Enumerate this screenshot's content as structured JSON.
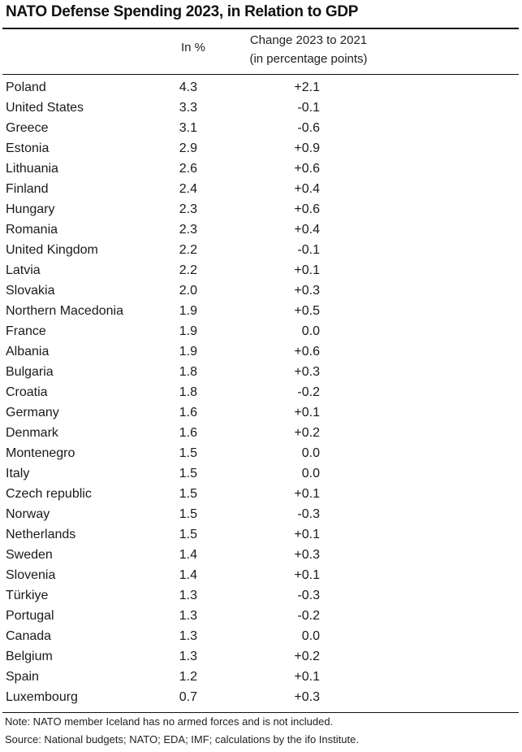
{
  "title": "NATO Defense Spending 2023, in Relation to GDP",
  "table": {
    "headers": {
      "country": "",
      "pct": "In %",
      "change_line1": "Change 2023 to 2021",
      "change_line2": "(in percentage points)"
    },
    "rows": [
      {
        "country": "Poland",
        "pct": "4.3",
        "change": "+2.1"
      },
      {
        "country": "United States",
        "pct": "3.3",
        "change": "-0.1"
      },
      {
        "country": "Greece",
        "pct": "3.1",
        "change": "-0.6"
      },
      {
        "country": "Estonia",
        "pct": "2.9",
        "change": "+0.9"
      },
      {
        "country": "Lithuania",
        "pct": "2.6",
        "change": "+0.6"
      },
      {
        "country": "Finland",
        "pct": "2.4",
        "change": "+0.4"
      },
      {
        "country": "Hungary",
        "pct": "2.3",
        "change": "+0.6"
      },
      {
        "country": "Romania",
        "pct": "2.3",
        "change": "+0.4"
      },
      {
        "country": "United Kingdom",
        "pct": "2.2",
        "change": "-0.1"
      },
      {
        "country": "Latvia",
        "pct": "2.2",
        "change": "+0.1"
      },
      {
        "country": "Slovakia",
        "pct": "2.0",
        "change": "+0.3"
      },
      {
        "country": "Northern Macedonia",
        "pct": "1.9",
        "change": "+0.5"
      },
      {
        "country": "France",
        "pct": "1.9",
        "change": "0.0"
      },
      {
        "country": "Albania",
        "pct": "1.9",
        "change": "+0.6"
      },
      {
        "country": "Bulgaria",
        "pct": "1.8",
        "change": "+0.3"
      },
      {
        "country": "Croatia",
        "pct": "1.8",
        "change": "-0.2"
      },
      {
        "country": "Germany",
        "pct": "1.6",
        "change": "+0.1"
      },
      {
        "country": "Denmark",
        "pct": "1.6",
        "change": "+0.2"
      },
      {
        "country": "Montenegro",
        "pct": "1.5",
        "change": "0.0"
      },
      {
        "country": "Italy",
        "pct": "1.5",
        "change": "0.0"
      },
      {
        "country": "Czech republic",
        "pct": "1.5",
        "change": "+0.1"
      },
      {
        "country": "Norway",
        "pct": "1.5",
        "change": "-0.3"
      },
      {
        "country": "Netherlands",
        "pct": "1.5",
        "change": "+0.1"
      },
      {
        "country": "Sweden",
        "pct": "1.4",
        "change": "+0.3"
      },
      {
        "country": "Slovenia",
        "pct": "1.4",
        "change": "+0.1"
      },
      {
        "country": "Türkiye",
        "pct": "1.3",
        "change": "-0.3"
      },
      {
        "country": "Portugal",
        "pct": "1.3",
        "change": "-0.2"
      },
      {
        "country": "Canada",
        "pct": "1.3",
        "change": "0.0"
      },
      {
        "country": "Belgium",
        "pct": "1.3",
        "change": "+0.2"
      },
      {
        "country": "Spain",
        "pct": "1.2",
        "change": "+0.1"
      },
      {
        "country": "Luxembourg",
        "pct": "0.7",
        "change": "+0.3"
      }
    ]
  },
  "footer": {
    "note": "Note: NATO member Iceland has no armed forces and is not included.",
    "source": "Source: National budgets; NATO; EDA; IMF; calculations by the ifo Institute."
  }
}
